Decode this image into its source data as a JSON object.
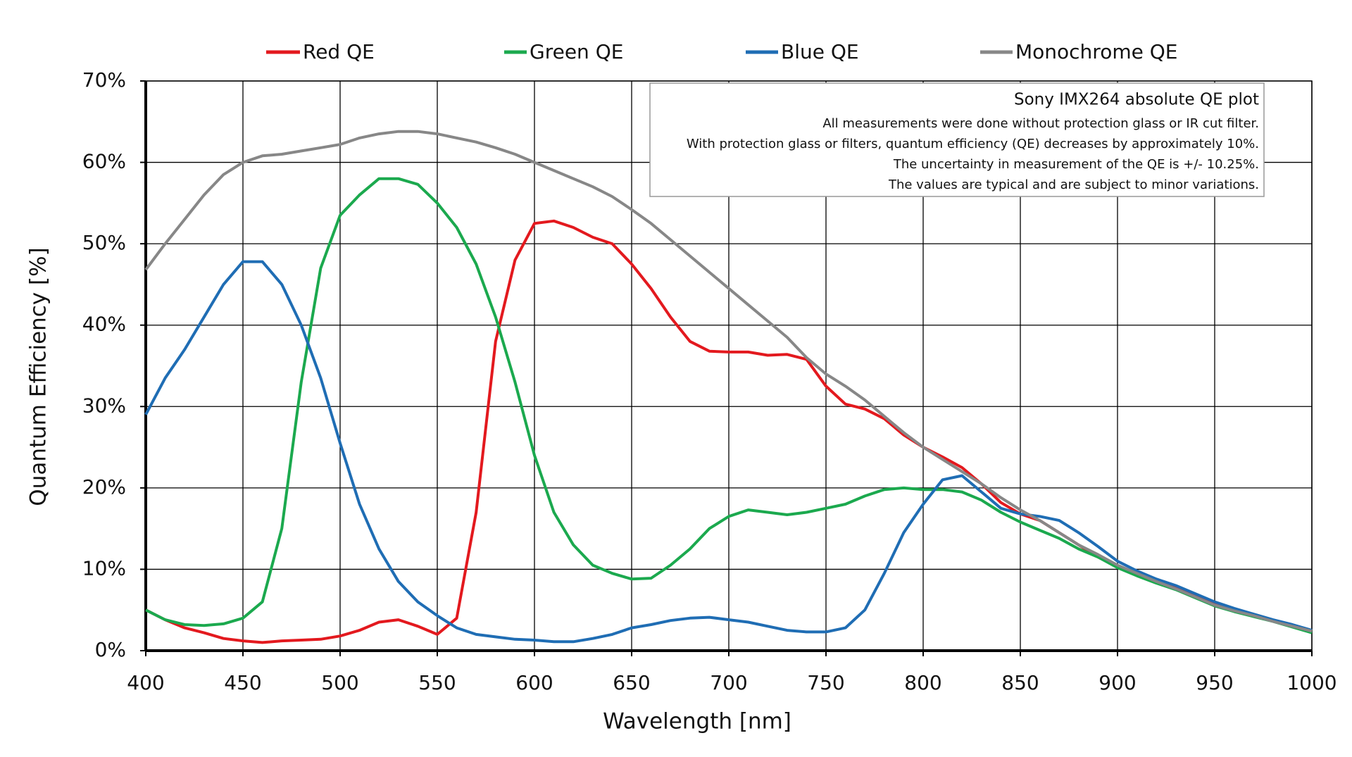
{
  "chart_data": {
    "type": "line",
    "y_label": "Quantum Efficiency [%]",
    "x_label": "Wavelength [nm]",
    "annotation": {
      "title": "Sony IMX264 absolute QE plot",
      "lines": [
        "All measurements were done without protection glass or IR cut filter.",
        "With protection glass or filters, quantum efficiency (QE) decreases by approximately 10%.",
        "The uncertainty in measurement of the QE is +/- 10.25%.",
        "The values are typical and are subject to minor variations."
      ]
    },
    "grid": true,
    "legend": "top",
    "xlim": [
      400,
      1000
    ],
    "xticks": [
      400,
      450,
      500,
      550,
      600,
      650,
      700,
      750,
      800,
      850,
      900,
      950,
      1000
    ],
    "ylim": [
      0,
      70
    ],
    "yticks": [
      {
        "value": 0,
        "label": "0%"
      },
      {
        "value": 10,
        "label": "10%"
      },
      {
        "value": 20,
        "label": "20%"
      },
      {
        "value": 30,
        "label": "30%"
      },
      {
        "value": 40,
        "label": "40%"
      },
      {
        "value": 50,
        "label": "50%"
      },
      {
        "value": 60,
        "label": "60%"
      },
      {
        "value": 70,
        "label": "70%"
      }
    ],
    "x": [
      400,
      410,
      420,
      430,
      440,
      450,
      460,
      470,
      480,
      490,
      500,
      510,
      520,
      530,
      540,
      550,
      560,
      570,
      580,
      590,
      600,
      610,
      620,
      630,
      640,
      650,
      660,
      670,
      680,
      690,
      700,
      710,
      720,
      730,
      740,
      750,
      760,
      770,
      780,
      790,
      800,
      810,
      820,
      830,
      840,
      850,
      860,
      870,
      880,
      890,
      900,
      910,
      920,
      930,
      940,
      950,
      960,
      970,
      980,
      990,
      1000
    ],
    "series": [
      {
        "name": "Red QE",
        "color": "#e3191e",
        "values": [
          5,
          3.8,
          2.8,
          2.2,
          1.5,
          1.2,
          1.0,
          1.2,
          1.3,
          1.4,
          1.8,
          2.5,
          3.5,
          3.8,
          3.0,
          2.0,
          4.0,
          17,
          38,
          48,
          52.5,
          52.8,
          52,
          50.8,
          50,
          47.5,
          44.5,
          41,
          38,
          36.8,
          36.7,
          36.7,
          36.3,
          36.4,
          35.8,
          32.5,
          30.3,
          29.7,
          28.5,
          26.5,
          25,
          23.8,
          22.5,
          20.5,
          18.2,
          16.8,
          16,
          14.5,
          13,
          11.5,
          10.3,
          9.3,
          8.5,
          7.8,
          6.8,
          5.8,
          5,
          4.4,
          3.7,
          3,
          2.4
        ]
      },
      {
        "name": "Green QE",
        "color": "#1ba94e",
        "values": [
          5,
          3.8,
          3.2,
          3.1,
          3.3,
          4,
          6,
          15,
          33,
          47,
          53.5,
          56,
          58,
          58,
          57.3,
          55,
          52,
          47.5,
          41,
          33,
          24,
          17,
          13,
          10.5,
          9.5,
          8.8,
          8.9,
          10.5,
          12.5,
          15,
          16.5,
          17.3,
          17,
          16.7,
          17,
          17.5,
          18,
          19,
          19.8,
          20,
          19.8,
          19.8,
          19.5,
          18.5,
          17,
          15.8,
          14.8,
          13.8,
          12.5,
          11.5,
          10.2,
          9.2,
          8.3,
          7.5,
          6.5,
          5.5,
          4.8,
          4.2,
          3.6,
          2.9,
          2.2
        ]
      },
      {
        "name": "Blue QE",
        "color": "#1f6db4",
        "values": [
          29,
          33.5,
          37,
          41,
          45,
          47.8,
          47.8,
          45,
          40,
          33.5,
          25.5,
          18,
          12.5,
          8.5,
          6,
          4.3,
          2.8,
          2,
          1.7,
          1.4,
          1.3,
          1.1,
          1.1,
          1.5,
          2,
          2.8,
          3.2,
          3.7,
          4,
          4.1,
          3.8,
          3.5,
          3,
          2.5,
          2.3,
          2.3,
          2.8,
          5,
          9.5,
          14.5,
          18,
          21,
          21.5,
          19.5,
          17.5,
          16.8,
          16.5,
          16,
          14.5,
          12.8,
          11,
          9.8,
          8.8,
          8,
          7,
          6,
          5.2,
          4.5,
          3.8,
          3.2,
          2.5
        ]
      },
      {
        "name": "Monochrome QE",
        "color": "#878787",
        "values": [
          46.8,
          50,
          53,
          56,
          58.5,
          60,
          60.8,
          61,
          61.4,
          61.8,
          62.2,
          63,
          63.5,
          63.8,
          63.8,
          63.5,
          63,
          62.5,
          61.8,
          61,
          60,
          59,
          58,
          57,
          55.8,
          54.2,
          52.5,
          50.5,
          48.5,
          46.5,
          44.5,
          42.5,
          40.5,
          38.5,
          36,
          34,
          32.5,
          30.8,
          28.8,
          26.8,
          25,
          23.5,
          22,
          20.5,
          18.8,
          17.3,
          16,
          14.5,
          13,
          11.8,
          10.5,
          9.5,
          8.5,
          7.6,
          6.6,
          5.6,
          4.9,
          4.3,
          3.6,
          3,
          2.4
        ]
      }
    ]
  }
}
